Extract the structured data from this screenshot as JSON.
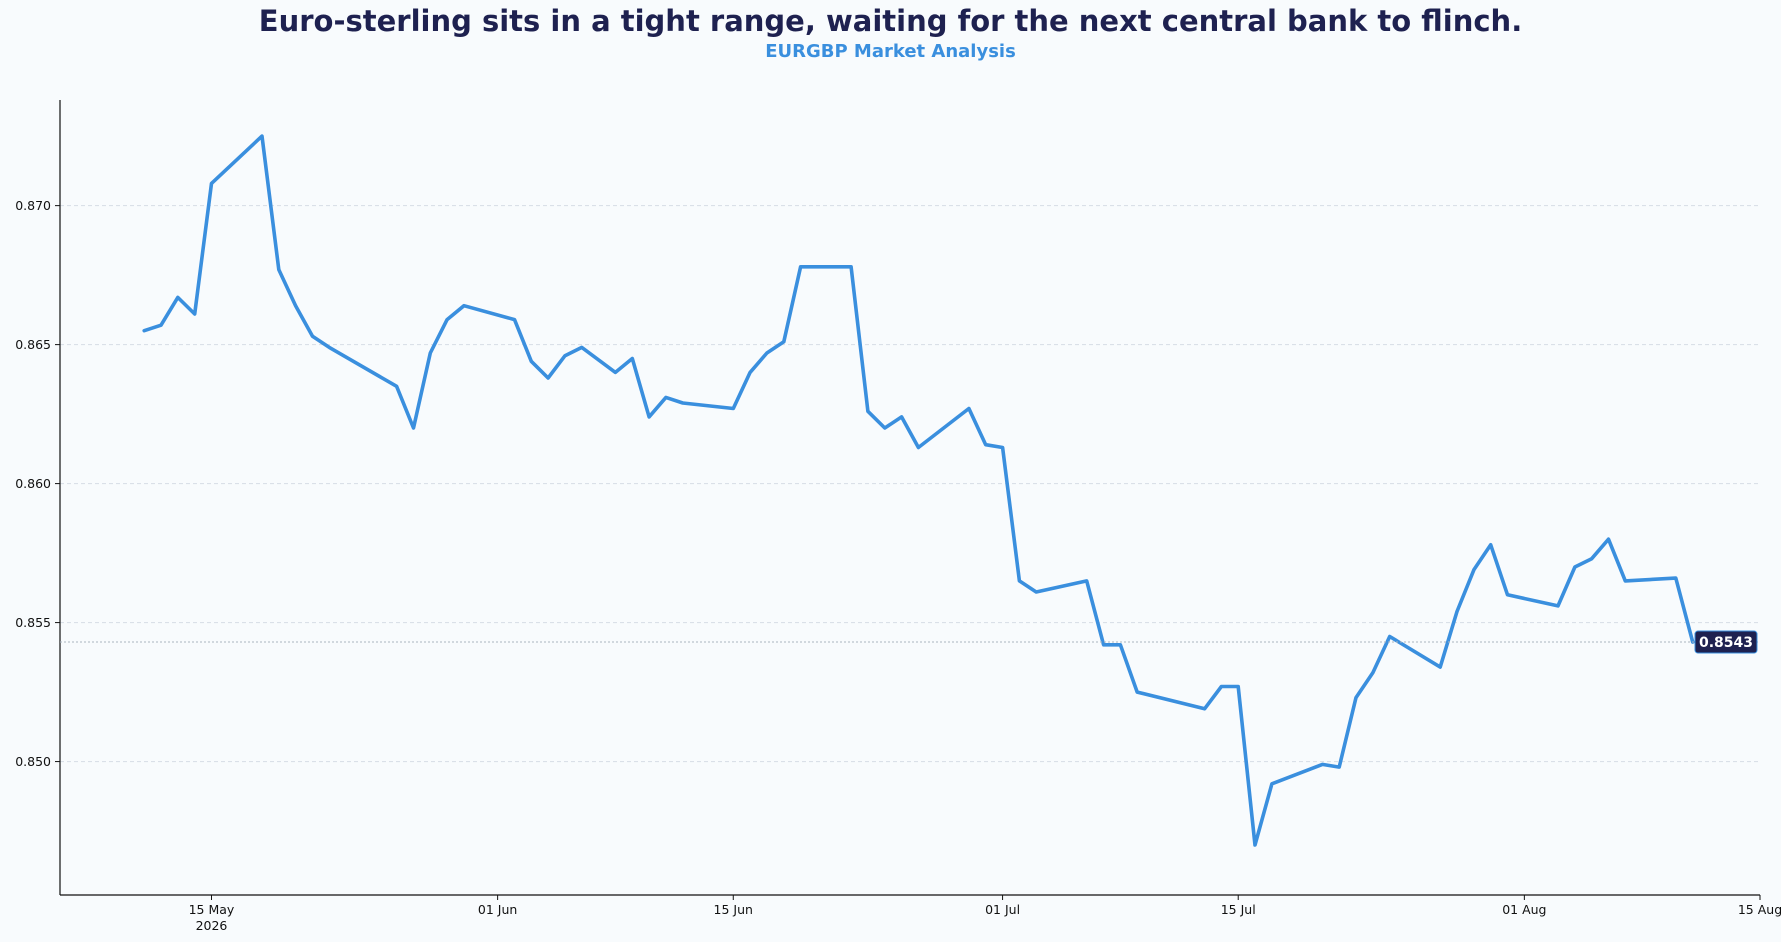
{
  "chart_data": {
    "type": "line",
    "title": "Euro-sterling sits in a tight range, waiting for the next central bank to flinch.",
    "subtitle": "EURGBP Market Analysis",
    "xlabel": "",
    "ylabel": "",
    "xlim": [
      "2026-05-06",
      "2026-08-15"
    ],
    "ylim": [
      0.8452,
      0.8738
    ],
    "x_ticks": [
      {
        "date": "2026-05-15",
        "label": "15 May",
        "sublabel": "2026"
      },
      {
        "date": "2026-06-01",
        "label": "01 Jun",
        "sublabel": ""
      },
      {
        "date": "2026-06-15",
        "label": "15 Jun",
        "sublabel": ""
      },
      {
        "date": "2026-07-01",
        "label": "01 Jul",
        "sublabel": ""
      },
      {
        "date": "2026-07-15",
        "label": "15 Jul",
        "sublabel": ""
      },
      {
        "date": "2026-08-01",
        "label": "01 Aug",
        "sublabel": ""
      },
      {
        "date": "2026-08-15",
        "label": "15 Aug",
        "sublabel": ""
      }
    ],
    "y_ticks": [
      0.85,
      0.855,
      0.86,
      0.865,
      0.87
    ],
    "y_tick_labels": [
      "0.850",
      "0.855",
      "0.860",
      "0.865",
      "0.870"
    ],
    "grid": "horizontal-dashed",
    "legend": "none",
    "last_value_label": "0.8543",
    "last_value": 0.8543,
    "colors": {
      "line": "#3a8fde",
      "title": "#1e2150",
      "subtitle": "#3a8fde",
      "label_bg": "#1e2150",
      "grid": "#d5dde5",
      "axis": "#111111"
    },
    "series": [
      {
        "x": [
          "2026-05-11",
          "2026-05-12",
          "2026-05-13",
          "2026-05-14",
          "2026-05-15",
          "2026-05-18",
          "2026-05-19",
          "2026-05-20",
          "2026-05-21",
          "2026-05-22",
          "2026-05-26",
          "2026-05-27",
          "2026-05-28",
          "2026-05-29",
          "2026-05-30",
          "2026-06-02",
          "2026-06-03",
          "2026-06-04",
          "2026-06-05",
          "2026-06-06",
          "2026-06-08",
          "2026-06-09",
          "2026-06-10",
          "2026-06-11",
          "2026-06-12",
          "2026-06-15",
          "2026-06-16",
          "2026-06-17",
          "2026-06-18",
          "2026-06-19",
          "2026-06-22",
          "2026-06-23",
          "2026-06-24",
          "2026-06-25",
          "2026-06-26",
          "2026-06-29",
          "2026-06-30",
          "2026-07-01",
          "2026-07-02",
          "2026-07-03",
          "2026-07-06",
          "2026-07-07",
          "2026-07-08",
          "2026-07-09",
          "2026-07-13",
          "2026-07-14",
          "2026-07-15",
          "2026-07-16",
          "2026-07-17",
          "2026-07-20",
          "2026-07-21",
          "2026-07-22",
          "2026-07-23",
          "2026-07-24",
          "2026-07-27",
          "2026-07-28",
          "2026-07-29",
          "2026-07-30",
          "2026-07-31",
          "2026-08-03",
          "2026-08-04",
          "2026-08-05",
          "2026-08-06",
          "2026-08-07",
          "2026-08-10",
          "2026-08-11"
        ],
        "y": [
          0.8655,
          0.8657,
          0.8667,
          0.8661,
          0.8708,
          0.8725,
          0.8677,
          0.8664,
          0.8653,
          0.8649,
          0.8635,
          0.862,
          0.8647,
          0.8659,
          0.8664,
          0.8659,
          0.8644,
          0.8638,
          0.8646,
          0.8649,
          0.864,
          0.8645,
          0.8624,
          0.8631,
          0.8629,
          0.8627,
          0.864,
          0.8647,
          0.8651,
          0.8678,
          0.8678,
          0.8626,
          0.862,
          0.8624,
          0.8613,
          0.8627,
          0.8614,
          0.8613,
          0.8565,
          0.8561,
          0.8565,
          0.8542,
          0.8542,
          0.8525,
          0.8519,
          0.8527,
          0.8527,
          0.847,
          0.8492,
          0.8499,
          0.8498,
          0.8523,
          0.8532,
          0.8545,
          0.8534,
          0.8554,
          0.8569,
          0.8578,
          0.856,
          0.8556,
          0.857,
          0.8573,
          0.858,
          0.8565,
          0.8566,
          0.8543
        ]
      }
    ]
  }
}
